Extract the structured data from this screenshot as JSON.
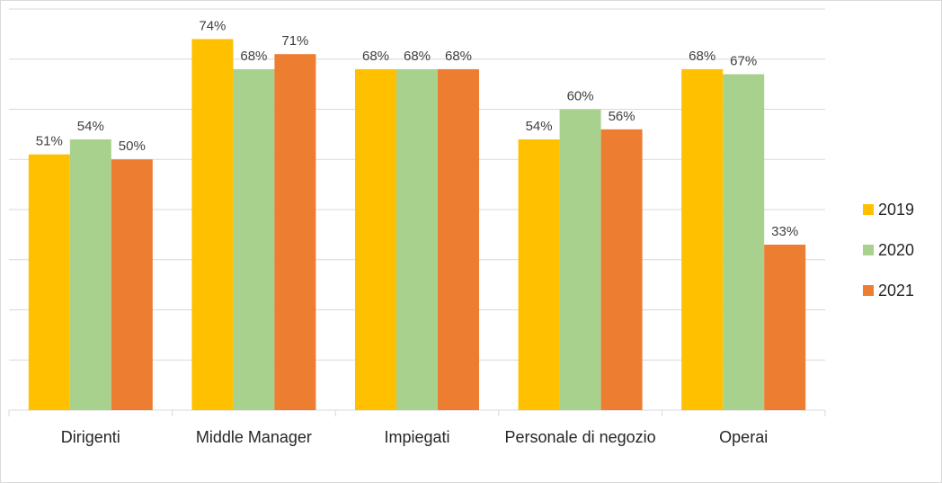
{
  "chart_data": {
    "type": "bar",
    "categories": [
      "Dirigenti",
      "Middle Manager",
      "Impiegati",
      "Personale di negozio",
      "Operai"
    ],
    "series": [
      {
        "name": "2019",
        "color": "#FFC000",
        "values": [
          51,
          74,
          68,
          54,
          68
        ],
        "value_labels": [
          "51%",
          "74%",
          "68%",
          "54%",
          "68%"
        ]
      },
      {
        "name": "2020",
        "color": "#A9D18E",
        "values": [
          54,
          68,
          68,
          60,
          67
        ],
        "value_labels": [
          "54%",
          "68%",
          "68%",
          "60%",
          "67%"
        ]
      },
      {
        "name": "2021",
        "color": "#ED7D31",
        "values": [
          50,
          71,
          68,
          56,
          33
        ],
        "value_labels": [
          "50%",
          "71%",
          "68%",
          "56%",
          "33%"
        ]
      }
    ],
    "ylim": [
      0,
      80
    ],
    "yticks": [
      0,
      10,
      20,
      30,
      40,
      50,
      60,
      70,
      80
    ],
    "grid": true,
    "legend": "right"
  }
}
